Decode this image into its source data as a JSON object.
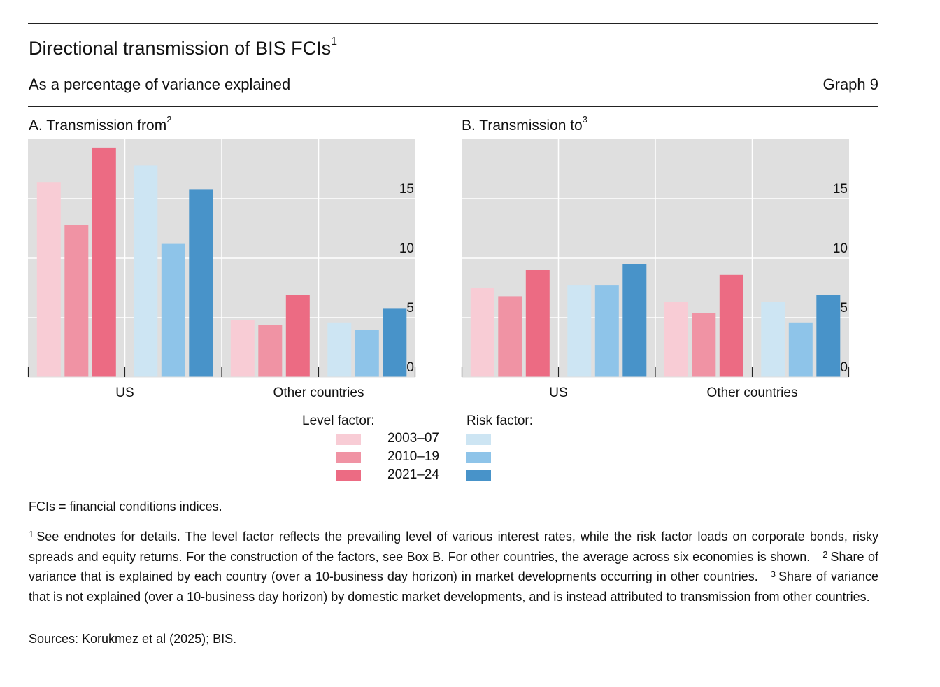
{
  "header": {
    "title": "Directional transmission of BIS FCIs",
    "title_sup": "1",
    "subtitle": "As a percentage of variance explained",
    "graph_number": "Graph 9"
  },
  "colors": {
    "level_2003_07": "#f8ccd5",
    "level_2010_19": "#f093a4",
    "level_2021_24": "#ec6b83",
    "risk_2003_07": "#cde5f3",
    "risk_2010_19": "#8ec4e9",
    "risk_2021_24": "#4893c9",
    "plot_background": "#dfdfdf",
    "grid": "#ffffff"
  },
  "legend": {
    "level_title": "Level factor:",
    "risk_title": "Risk factor:",
    "periods": [
      "2003–07",
      "2010–19",
      "2021–24"
    ]
  },
  "chart_data": [
    {
      "type": "bar",
      "title": "A. Transmission from",
      "title_sup": "2",
      "categories": [
        "US",
        "Other countries"
      ],
      "ylim": [
        0,
        20
      ],
      "yticks": [
        0,
        5,
        10,
        15
      ],
      "grid": true,
      "series": [
        {
          "name": "2003–07",
          "factor": "Level factor",
          "values": [
            16.4,
            4.8
          ]
        },
        {
          "name": "2010–19",
          "factor": "Level factor",
          "values": [
            12.8,
            4.4
          ]
        },
        {
          "name": "2021–24",
          "factor": "Level factor",
          "values": [
            19.3,
            6.9
          ]
        },
        {
          "name": "2003–07",
          "factor": "Risk factor",
          "values": [
            17.8,
            4.6
          ]
        },
        {
          "name": "2010–19",
          "factor": "Risk factor",
          "values": [
            11.2,
            4.0
          ]
        },
        {
          "name": "2021–24",
          "factor": "Risk factor",
          "values": [
            15.8,
            5.8
          ]
        }
      ]
    },
    {
      "type": "bar",
      "title": "B. Transmission to",
      "title_sup": "3",
      "categories": [
        "US",
        "Other countries"
      ],
      "ylim": [
        0,
        20
      ],
      "yticks": [
        0,
        5,
        10,
        15
      ],
      "grid": true,
      "series": [
        {
          "name": "2003–07",
          "factor": "Level factor",
          "values": [
            7.5,
            6.3
          ]
        },
        {
          "name": "2010–19",
          "factor": "Level factor",
          "values": [
            6.8,
            5.4
          ]
        },
        {
          "name": "2021–24",
          "factor": "Level factor",
          "values": [
            9.0,
            8.6
          ]
        },
        {
          "name": "2003–07",
          "factor": "Risk factor",
          "values": [
            7.7,
            6.3
          ]
        },
        {
          "name": "2010–19",
          "factor": "Risk factor",
          "values": [
            7.7,
            4.6
          ]
        },
        {
          "name": "2021–24",
          "factor": "Risk factor",
          "values": [
            9.5,
            6.9
          ]
        }
      ]
    }
  ],
  "footer": {
    "abbrev": "FCIs = financial conditions indices.",
    "note1_mark": "1",
    "note1": "See endnotes for details. The level factor reflects the prevailing level of various interest rates, while the risk factor loads on corporate bonds, risky spreads and equity returns. For the construction of the factors, see Box B. For other countries, the average across six economies is shown.",
    "note2_mark": "2",
    "note2": "Share of variance that is explained by each country (over a 10-business day horizon) in market developments occurring in other countries.",
    "note3_mark": "3",
    "note3": "Share of variance that is not explained (over a 10-business day horizon) by domestic market developments, and is instead attributed to transmission from other countries.",
    "sources": "Sources: Korukmez et al (2025); BIS."
  }
}
